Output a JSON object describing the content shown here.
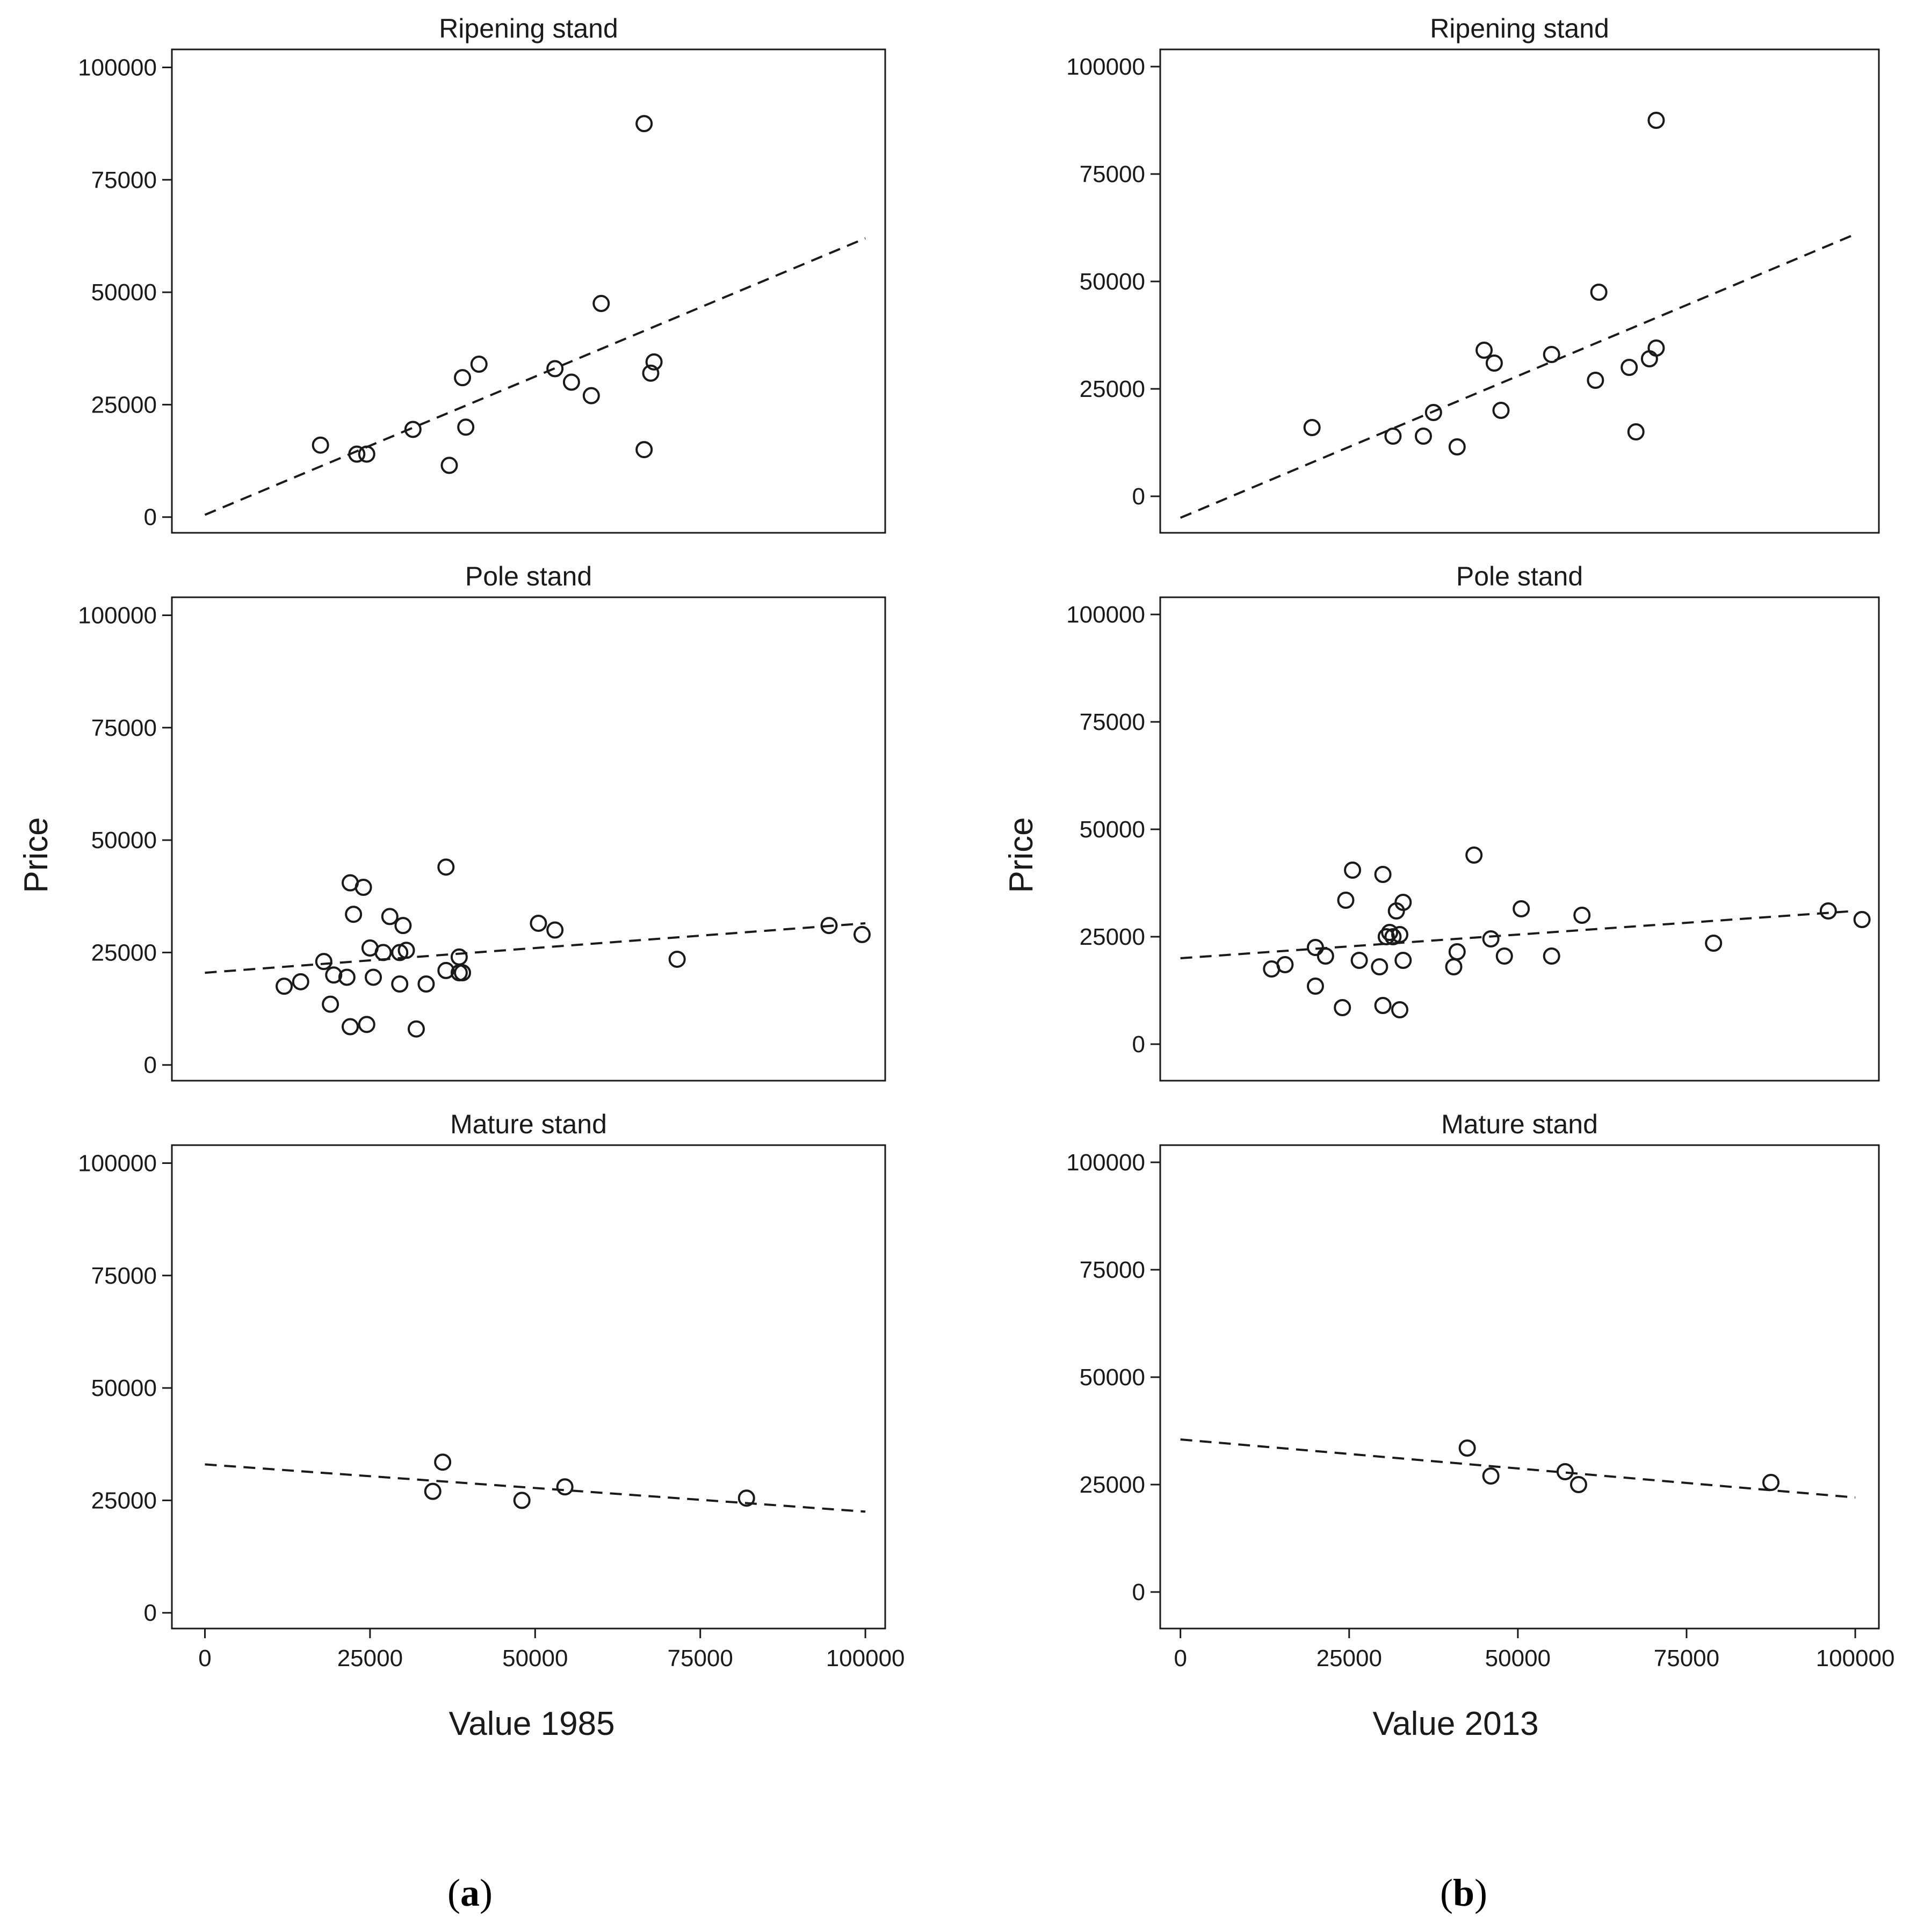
{
  "figure": {
    "sub_labels": [
      {
        "open": "(",
        "letter": "a",
        "close": ")"
      },
      {
        "open": "(",
        "letter": "b",
        "close": ")"
      }
    ]
  },
  "chart_data": [
    {
      "type": "scatter",
      "column": "a",
      "title": "Ripening stand",
      "xlabel": "Value 1985",
      "ylabel": "Price",
      "xlim": [
        -5000,
        103000
      ],
      "ylim": [
        -3500,
        104000
      ],
      "xticks": [
        "0",
        "25000",
        "50000",
        "75000",
        "100000"
      ],
      "yticks": [
        "0",
        "25000",
        "50000",
        "75000",
        "100000"
      ],
      "x": [
        17500,
        23000,
        24500,
        31500,
        37000,
        39000,
        39500,
        41500,
        53000,
        55500,
        58500,
        60000,
        66500,
        66500,
        67500,
        68000
      ],
      "y": [
        16000,
        14000,
        14000,
        19500,
        11500,
        31000,
        20000,
        34000,
        33000,
        30000,
        27000,
        47500,
        87500,
        15000,
        32000,
        34500
      ],
      "fit": {
        "x": [
          0,
          100000
        ],
        "y": [
          500,
          62000
        ]
      }
    },
    {
      "type": "scatter",
      "column": "b",
      "title": "Ripening stand",
      "xlabel": "Value 2013",
      "ylabel": "Price",
      "xlim": [
        -3000,
        103500
      ],
      "ylim": [
        -8500,
        104000
      ],
      "xticks": [
        "0",
        "25000",
        "50000",
        "75000",
        "100000"
      ],
      "yticks": [
        "0",
        "25000",
        "50000",
        "75000",
        "100000"
      ],
      "x": [
        19500,
        31500,
        36000,
        37500,
        41000,
        45000,
        46500,
        47500,
        55000,
        61500,
        62000,
        66500,
        67500,
        69500,
        70500,
        70500
      ],
      "y": [
        16000,
        14000,
        14000,
        19500,
        11500,
        34000,
        31000,
        20000,
        33000,
        27000,
        47500,
        30000,
        15000,
        32000,
        34500,
        87500
      ],
      "fit": {
        "x": [
          0,
          100000
        ],
        "y": [
          -5000,
          61000
        ]
      }
    },
    {
      "type": "scatter",
      "column": "a",
      "title": "Pole stand",
      "xlabel": "Value 1985",
      "ylabel": "Price",
      "xlim": [
        -5000,
        103000
      ],
      "ylim": [
        -3500,
        104000
      ],
      "xticks": [
        "0",
        "25000",
        "50000",
        "75000",
        "100000"
      ],
      "yticks": [
        "0",
        "25000",
        "50000",
        "75000",
        "100000"
      ],
      "x": [
        12000,
        14500,
        18000,
        19000,
        19500,
        21500,
        22000,
        22000,
        22500,
        24000,
        24500,
        25000,
        25500,
        27000,
        28000,
        29500,
        29500,
        30000,
        30500,
        32000,
        33500,
        36500,
        36500,
        38500,
        38500,
        39000,
        50500,
        53000,
        71500,
        94500,
        99500
      ],
      "y": [
        17500,
        18500,
        23000,
        13500,
        20000,
        19500,
        40500,
        8500,
        33500,
        39500,
        9000,
        26000,
        19500,
        25000,
        33000,
        25000,
        18000,
        31000,
        25500,
        8000,
        18000,
        21000,
        44000,
        24000,
        20500,
        20500,
        31500,
        30000,
        23500,
        31000,
        29000
      ],
      "fit": {
        "x": [
          0,
          100000
        ],
        "y": [
          20500,
          31500
        ]
      }
    },
    {
      "type": "scatter",
      "column": "b",
      "title": "Pole stand",
      "xlabel": "Value 2013",
      "ylabel": "Price",
      "xlim": [
        -3000,
        103500
      ],
      "ylim": [
        -8500,
        104000
      ],
      "xticks": [
        "0",
        "25000",
        "50000",
        "75000",
        "100000"
      ],
      "yticks": [
        "0",
        "25000",
        "50000",
        "75000",
        "100000"
      ],
      "x": [
        13500,
        15500,
        20000,
        20000,
        21500,
        24000,
        24500,
        25500,
        26500,
        29500,
        30000,
        30000,
        30500,
        31000,
        31500,
        32000,
        32500,
        32500,
        33000,
        33000,
        40500,
        41000,
        43500,
        46000,
        48000,
        50500,
        55000,
        59500,
        79000,
        96000,
        101000
      ],
      "y": [
        17500,
        18500,
        22500,
        13500,
        20500,
        8500,
        33500,
        40500,
        19500,
        18000,
        39500,
        9000,
        25000,
        26000,
        25000,
        31000,
        25500,
        8000,
        33000,
        19500,
        18000,
        21500,
        44000,
        24500,
        20500,
        31500,
        20500,
        30000,
        23500,
        31000,
        29000
      ],
      "fit": {
        "x": [
          0,
          100000
        ],
        "y": [
          20000,
          31000
        ]
      }
    },
    {
      "type": "scatter",
      "column": "a",
      "title": "Mature stand",
      "xlabel": "Value 1985",
      "ylabel": "Price",
      "xlim": [
        -5000,
        103000
      ],
      "ylim": [
        -3500,
        104000
      ],
      "xticks": [
        "0",
        "25000",
        "50000",
        "75000",
        "100000"
      ],
      "yticks": [
        "0",
        "25000",
        "50000",
        "75000",
        "100000"
      ],
      "x": [
        34500,
        36000,
        48000,
        54500,
        82000
      ],
      "y": [
        27000,
        33500,
        25000,
        28000,
        25500
      ],
      "fit": {
        "x": [
          0,
          100000
        ],
        "y": [
          33000,
          22500
        ]
      }
    },
    {
      "type": "scatter",
      "column": "b",
      "title": "Mature stand",
      "xlabel": "Value 2013",
      "ylabel": "Price",
      "xlim": [
        -3000,
        103500
      ],
      "ylim": [
        -8500,
        104000
      ],
      "xticks": [
        "0",
        "25000",
        "50000",
        "75000",
        "100000"
      ],
      "yticks": [
        "0",
        "25000",
        "50000",
        "75000",
        "100000"
      ],
      "x": [
        42500,
        46000,
        57000,
        59000,
        87500
      ],
      "y": [
        33500,
        27000,
        28000,
        25000,
        25500
      ],
      "fit": {
        "x": [
          0,
          100000
        ],
        "y": [
          35500,
          22000
        ]
      }
    }
  ]
}
